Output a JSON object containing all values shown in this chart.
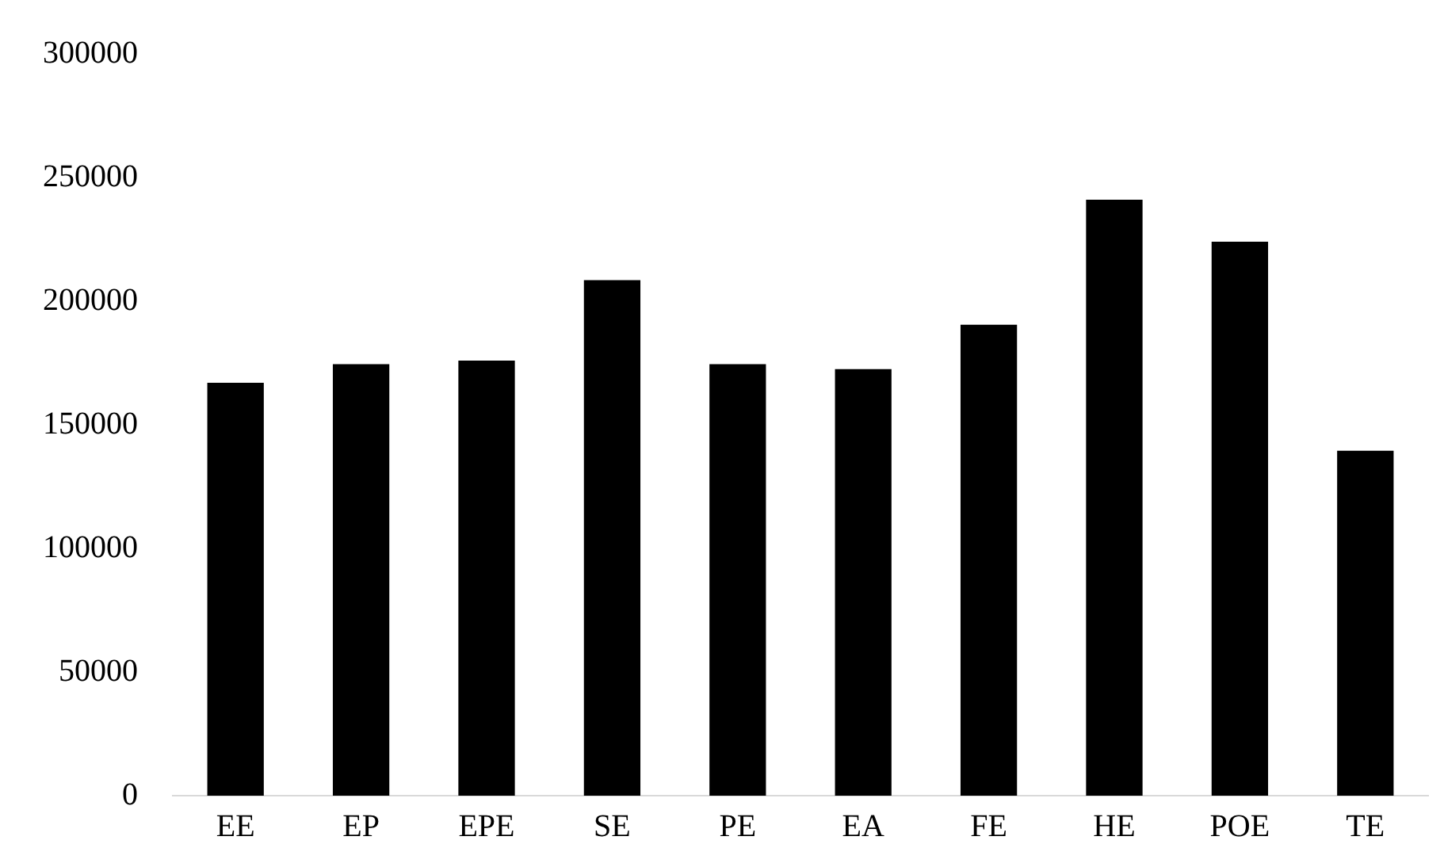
{
  "chart_data": {
    "type": "bar",
    "categories": [
      "EE",
      "EP",
      "EPE",
      "SE",
      "PE",
      "EA",
      "FE",
      "HE",
      "POE",
      "TE"
    ],
    "values": [
      167000,
      174500,
      176000,
      208500,
      174500,
      172500,
      190500,
      241000,
      224000,
      139500
    ],
    "color": "#000000",
    "ylim": [
      0,
      300000
    ],
    "yticks": [
      0,
      50000,
      100000,
      150000,
      200000,
      250000,
      300000
    ],
    "grid": false,
    "legend": false
  }
}
